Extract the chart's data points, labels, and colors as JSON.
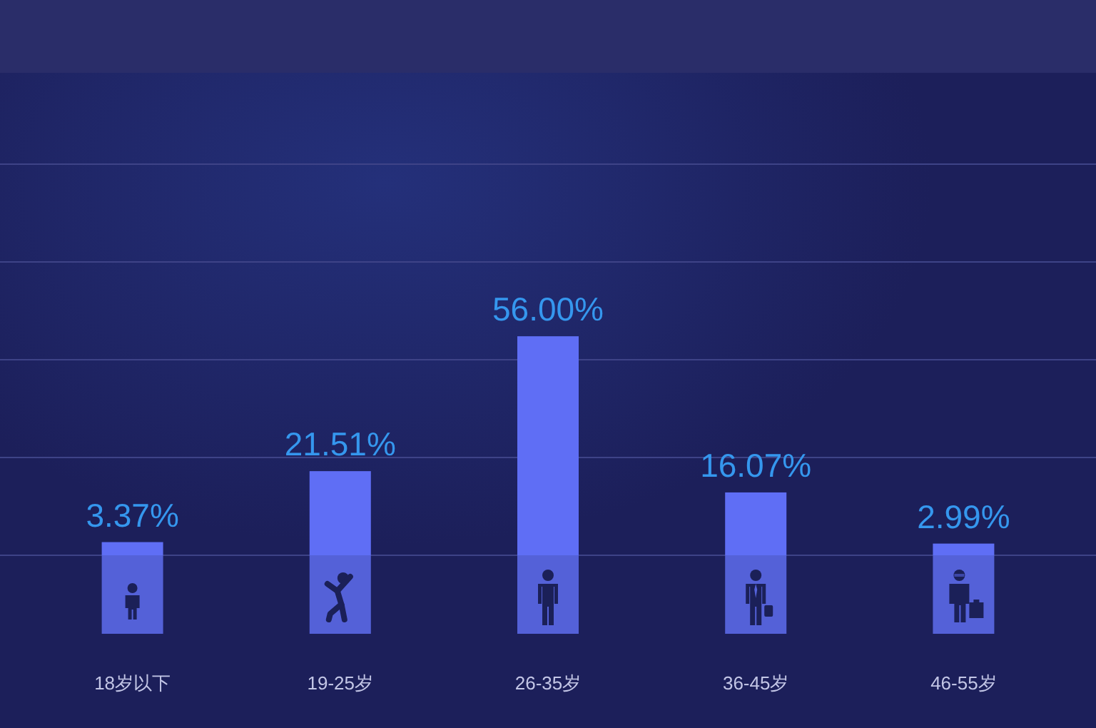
{
  "chart_data": {
    "type": "bar",
    "categories": [
      "18岁以下",
      "19-25岁",
      "26-35岁",
      "36-45岁",
      "46-55岁"
    ],
    "values": [
      3.37,
      21.51,
      56.0,
      16.07,
      2.99
    ],
    "value_labels": [
      "3.37%",
      "21.51%",
      "56.00%",
      "16.07%",
      "2.99%"
    ],
    "color": "#5f6ef5",
    "ylim": [
      0,
      100
    ],
    "yticks": [
      0,
      25,
      50,
      75,
      100
    ],
    "grid": "y",
    "tick_labels": "x"
  }
}
